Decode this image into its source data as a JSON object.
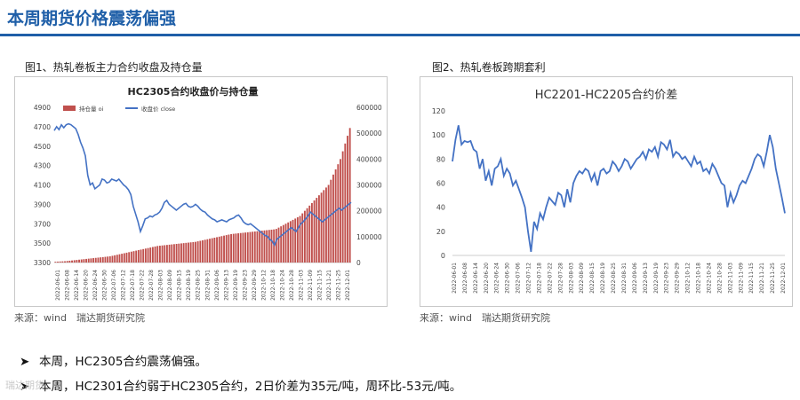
{
  "page": {
    "title": "本周期货价格震荡偏强",
    "fig1_caption": "图1、热轧卷板主力合约收盘及持仓量",
    "fig2_caption": "图2、热轧卷板跨期套利",
    "source1": "来源：wind　瑞达期货研究院",
    "source2": "来源：wind　瑞达期货研究院",
    "bullets": [
      "本周，HC2305合约震荡偏强。",
      "本周，HC2301合约弱于HC2305合约，2日价差为35元/吨，周环比-53元/吨。"
    ],
    "watermark": "瑞达期货"
  },
  "chart_data": [
    {
      "type": "bar+line",
      "title": "HC2305合约收盘价与持仓量",
      "legend": [
        "持仓量 oi",
        "收盘价 close"
      ],
      "legend_position": "top",
      "x_labels": [
        "2022-06-01",
        "2022-06-08",
        "2022-06-14",
        "2022-06-20",
        "2022-06-24",
        "2022-06-30",
        "2022-07-06",
        "2022-07-12",
        "2022-07-18",
        "2022-07-22",
        "2022-07-28",
        "2022-08-03",
        "2022-08-09",
        "2022-08-15",
        "2022-08-19",
        "2022-08-25",
        "2022-08-31",
        "2022-09-06",
        "2022-09-13",
        "2022-09-19",
        "2022-09-23",
        "2022-09-29",
        "2022-10-12",
        "2022-10-18",
        "2022-10-24",
        "2022-10-28",
        "2022-11-03",
        "2022-11-09",
        "2022-11-15",
        "2022-11-21",
        "2022-11-25",
        "2022-12-01"
      ],
      "y_left": {
        "min": 3300,
        "max": 4900,
        "ticks": [
          3300,
          3500,
          3700,
          3900,
          4100,
          4300,
          4500,
          4700,
          4900
        ]
      },
      "y_right": {
        "min": 0,
        "max": 600000,
        "ticks": [
          "0",
          "100000",
          "200000",
          "300000",
          "400000",
          "500000",
          "600000"
        ]
      },
      "series": [
        {
          "name": "持仓量 oi",
          "axis": "right",
          "color": "#c0504d",
          "values": [
            3000,
            3500,
            4000,
            4500,
            5000,
            6000,
            7000,
            8000,
            9000,
            10000,
            11000,
            12000,
            13000,
            14000,
            15000,
            16000,
            17000,
            18000,
            19000,
            20000,
            21000,
            22000,
            23000,
            24000,
            26000,
            28000,
            30000,
            32000,
            34000,
            36000,
            38000,
            40000,
            42000,
            44000,
            46000,
            48000,
            50000,
            52000,
            54000,
            56000,
            58000,
            60000,
            62000,
            64000,
            65000,
            66000,
            67000,
            68000,
            69000,
            70000,
            71000,
            72000,
            73000,
            74000,
            75000,
            76000,
            77000,
            78000,
            79000,
            80000,
            82000,
            84000,
            86000,
            88000,
            90000,
            92000,
            94000,
            96000,
            98000,
            100000,
            102000,
            104000,
            106000,
            108000,
            110000,
            111000,
            112000,
            113000,
            114000,
            115000,
            116000,
            117000,
            118000,
            119000,
            120000,
            121000,
            122000,
            123000,
            124000,
            125000,
            126000,
            127000,
            128000,
            130000,
            135000,
            140000,
            145000,
            150000,
            155000,
            160000,
            165000,
            170000,
            175000,
            180000,
            190000,
            200000,
            210000,
            220000,
            230000,
            240000,
            250000,
            260000,
            270000,
            280000,
            290000,
            300000,
            320000,
            340000,
            360000,
            380000,
            400000,
            430000,
            460000,
            490000,
            520000
          ]
        },
        {
          "name": "收盘价 close",
          "axis": "left",
          "color": "#4472c4",
          "values": [
            4660,
            4700,
            4670,
            4720,
            4690,
            4720,
            4730,
            4720,
            4700,
            4680,
            4620,
            4540,
            4480,
            4400,
            4200,
            4100,
            4120,
            4060,
            4080,
            4100,
            4160,
            4150,
            4120,
            4130,
            4160,
            4150,
            4140,
            4160,
            4130,
            4100,
            4080,
            4050,
            4000,
            3880,
            3800,
            3720,
            3620,
            3680,
            3750,
            3760,
            3780,
            3770,
            3790,
            3800,
            3820,
            3860,
            3920,
            3940,
            3900,
            3880,
            3860,
            3840,
            3860,
            3880,
            3900,
            3910,
            3880,
            3870,
            3880,
            3900,
            3880,
            3850,
            3830,
            3820,
            3790,
            3770,
            3750,
            3740,
            3720,
            3730,
            3740,
            3730,
            3720,
            3740,
            3750,
            3760,
            3780,
            3790,
            3760,
            3720,
            3700,
            3690,
            3700,
            3680,
            3660,
            3640,
            3620,
            3600,
            3580,
            3570,
            3540,
            3520,
            3480,
            3540,
            3560,
            3580,
            3600,
            3620,
            3640,
            3660,
            3640,
            3620,
            3660,
            3700,
            3720,
            3750,
            3780,
            3820,
            3800,
            3780,
            3760,
            3740,
            3720,
            3740,
            3760,
            3780,
            3800,
            3820,
            3840,
            3860,
            3840,
            3860,
            3880,
            3900,
            3920
          ]
        }
      ]
    },
    {
      "type": "line",
      "title": "HC2201-HC2205合约价差",
      "x_labels": [
        "2022-06-01",
        "2022-06-08",
        "2022-06-14",
        "2022-06-20",
        "2022-06-24",
        "2022-06-30",
        "2022-07-06",
        "2022-07-12",
        "2022-07-18",
        "2022-07-22",
        "2022-07-28",
        "2022-08-03",
        "2022-08-09",
        "2022-08-15",
        "2022-08-19",
        "2022-08-25",
        "2022-08-31",
        "2022-09-06",
        "2022-09-13",
        "2022-09-19",
        "2022-09-23",
        "2022-09-29",
        "2022-10-12",
        "2022-10-18",
        "2022-10-24",
        "2022-10-28",
        "2022-11-03",
        "2022-11-09",
        "2022-11-15",
        "2022-11-21",
        "2022-11-25",
        "2022-12-01"
      ],
      "y": {
        "min": 0,
        "max": 120,
        "ticks": [
          0,
          20,
          40,
          60,
          80,
          100,
          120
        ]
      },
      "series": [
        {
          "name": "价差",
          "color": "#4472c4",
          "values": [
            78,
            96,
            108,
            92,
            95,
            94,
            95,
            88,
            86,
            72,
            80,
            62,
            70,
            58,
            72,
            74,
            80,
            66,
            72,
            68,
            58,
            62,
            55,
            48,
            40,
            20,
            3,
            28,
            22,
            35,
            30,
            40,
            48,
            45,
            42,
            52,
            50,
            40,
            55,
            44,
            60,
            66,
            70,
            68,
            72,
            70,
            62,
            68,
            58,
            70,
            72,
            68,
            70,
            78,
            75,
            70,
            74,
            80,
            78,
            72,
            76,
            80,
            82,
            86,
            80,
            88,
            86,
            90,
            82,
            94,
            92,
            88,
            96,
            82,
            86,
            84,
            80,
            82,
            78,
            74,
            82,
            76,
            78,
            70,
            72,
            68,
            76,
            72,
            66,
            60,
            58,
            40,
            52,
            44,
            50,
            58,
            62,
            60,
            66,
            72,
            80,
            84,
            82,
            74,
            86,
            100,
            90,
            72,
            60,
            48,
            35
          ]
        }
      ]
    }
  ]
}
